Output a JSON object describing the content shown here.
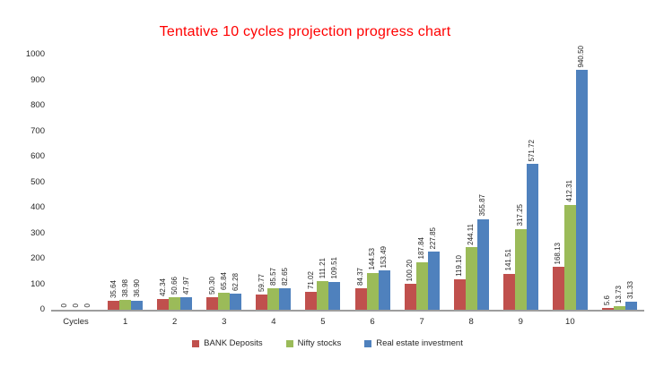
{
  "chart_data": {
    "type": "bar",
    "title": "Tentative 10 cycles projection progress chart",
    "title_color": "#ff0000",
    "axis_line_color": "#9d9d9d",
    "text_color": "#262626",
    "grid": false,
    "legend_position": "bottom",
    "ylim": [
      0,
      1000
    ],
    "y_ticks": [
      0,
      100,
      200,
      300,
      400,
      500,
      600,
      700,
      800,
      900,
      1000
    ],
    "categories": [
      "Cycles",
      "1",
      "2",
      "3",
      "4",
      "5",
      "6",
      "7",
      "8",
      "9",
      "10",
      ""
    ],
    "series": [
      {
        "name": "BANK Deposits",
        "color": "#c0504d",
        "values": [
          0,
          35.64,
          42.34,
          50.3,
          59.77,
          71.02,
          84.37,
          100.2,
          119.1,
          141.51,
          168.13,
          5.6
        ],
        "labels": [
          "0",
          "35.64",
          "42.34",
          "50.30",
          "59.77",
          "71.02",
          "84.37",
          "100.20",
          "119.10",
          "141.51",
          "168.13",
          "5.6"
        ]
      },
      {
        "name": "Nifty stocks",
        "color": "#9bbb59",
        "values": [
          0,
          38.98,
          50.66,
          65.84,
          85.57,
          111.21,
          144.53,
          187.84,
          244.11,
          317.25,
          412.31,
          13.73
        ],
        "labels": [
          "0",
          "38.98",
          "50.66",
          "65.84",
          "85.57",
          "111.21",
          "144.53",
          "187.84",
          "244.11",
          "317.25",
          "412.31",
          "13.73"
        ]
      },
      {
        "name": "Real estate investment",
        "color": "#4f81bd",
        "values": [
          0,
          36.9,
          47.97,
          62.28,
          82.65,
          109.51,
          153.49,
          227.85,
          355.87,
          571.72,
          940.5,
          31.33
        ],
        "labels": [
          "0",
          "36.90",
          "47.97",
          "62.28",
          "82.65",
          "109.51",
          "153.49",
          "227.85",
          "355.87",
          "571.72",
          "940.50",
          "31.33"
        ]
      }
    ]
  }
}
